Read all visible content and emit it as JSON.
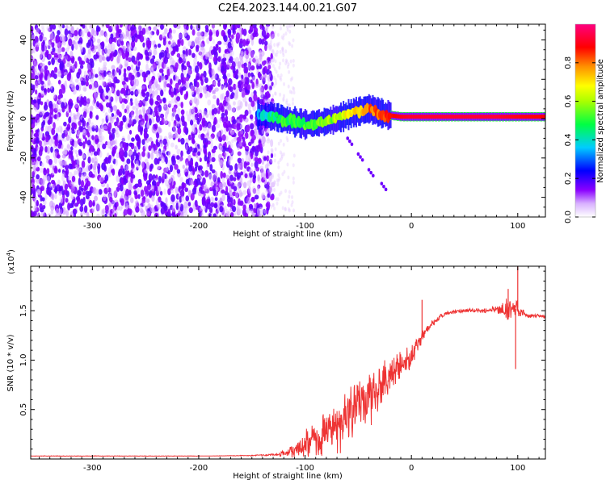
{
  "title": "C2E4.2023.144.00.21.G07",
  "chart_data": [
    {
      "type": "heatmap",
      "xlabel": "Height of straight line (km)",
      "ylabel": "Frequency (Hz)",
      "xlim": [
        -358,
        126
      ],
      "ylim": [
        -50,
        48
      ],
      "xticks": [
        -300,
        -200,
        -100,
        0,
        100
      ],
      "yticks": [
        -40,
        -20,
        0,
        20,
        40
      ],
      "xtick_labels": [
        "-300",
        "-200",
        "-100",
        "0",
        "100"
      ],
      "ytick_labels": [
        "-40",
        "-20",
        "0",
        "20",
        "40"
      ],
      "colorbar": {
        "label": "Normalized spectral amplitude",
        "range": [
          0,
          1
        ],
        "ticks": [
          0.0,
          0.2,
          0.4,
          0.6,
          0.8
        ],
        "tick_labels": [
          "0.0",
          "0.2",
          "0.4",
          "0.6",
          "0.8"
        ],
        "colormap": [
          "#ffffff",
          "#8a00ff",
          "#0000ff",
          "#00ffff",
          "#00ff00",
          "#ffff00",
          "#ff8000",
          "#ff0000",
          "#ff0080"
        ]
      },
      "noise_region": {
        "x_range": [
          -358,
          -130
        ],
        "freq_range": [
          -50,
          48
        ],
        "amplitude_range": [
          0.02,
          0.2
        ]
      },
      "ridge": [
        {
          "x": -145,
          "freq": 2,
          "amp": 0.3
        },
        {
          "x": -130,
          "freq": 1,
          "amp": 0.45
        },
        {
          "x": -115,
          "freq": -1,
          "amp": 0.5
        },
        {
          "x": -100,
          "freq": -3,
          "amp": 0.5
        },
        {
          "x": -85,
          "freq": -2,
          "amp": 0.55
        },
        {
          "x": -70,
          "freq": 0,
          "amp": 0.6
        },
        {
          "x": -55,
          "freq": 3,
          "amp": 0.7
        },
        {
          "x": -40,
          "freq": 5,
          "amp": 0.8
        },
        {
          "x": -25,
          "freq": 2,
          "amp": 0.85
        },
        {
          "x": -10,
          "freq": 1,
          "amp": 0.9
        },
        {
          "x": 0,
          "freq": 1,
          "amp": 0.92
        },
        {
          "x": 40,
          "freq": 1,
          "amp": 0.93
        },
        {
          "x": 80,
          "freq": 1,
          "amp": 0.93
        },
        {
          "x": 100,
          "freq": 1,
          "amp": 0.9
        },
        {
          "x": 126,
          "freq": 1,
          "amp": 0.88
        }
      ],
      "tail": [
        {
          "x": -60,
          "freq": -10
        },
        {
          "x": -50,
          "freq": -18
        },
        {
          "x": -40,
          "freq": -26
        },
        {
          "x": -28,
          "freq": -33
        }
      ]
    },
    {
      "type": "line",
      "xlabel": "Height of straight line (km)",
      "ylabel": "SNR (10 * v/v)",
      "multiplier_label": "(x10",
      "multiplier_exp": "4",
      "multiplier_close": ")",
      "xlim": [
        -358,
        126
      ],
      "ylim": [
        0,
        19500
      ],
      "xticks": [
        -300,
        -200,
        -100,
        0,
        100
      ],
      "yticks": [
        5000,
        10000,
        15000
      ],
      "xtick_labels": [
        "-300",
        "-200",
        "-100",
        "0",
        "100"
      ],
      "ytick_labels": [
        "0.5",
        "1.0",
        "1.5"
      ],
      "series": [
        {
          "color": "#ee3333",
          "x": [
            -358,
            -300,
            -250,
            -200,
            -150,
            -125,
            -110,
            -100,
            -90,
            -80,
            -70,
            -60,
            -50,
            -40,
            -30,
            -20,
            -10,
            0,
            10,
            20,
            30,
            40,
            50,
            60,
            70,
            80,
            90,
            95,
            100,
            105,
            110,
            126
          ],
          "y": [
            300,
            300,
            300,
            300,
            350,
            450,
            900,
            1500,
            2000,
            2700,
            3300,
            4200,
            5200,
            6300,
            7300,
            8400,
            9300,
            10500,
            12500,
            13800,
            14600,
            14900,
            15000,
            15000,
            15000,
            15100,
            15200,
            15000,
            15300,
            14800,
            14500,
            14400
          ],
          "noise": [
            0,
            0,
            0,
            0,
            50,
            150,
            900,
            1500,
            2000,
            2500,
            3000,
            3500,
            3800,
            3500,
            2800,
            2200,
            1800,
            1400,
            900,
            500,
            300,
            250,
            250,
            250,
            300,
            500,
            1300,
            1100,
            1200,
            600,
            300,
            150
          ]
        }
      ],
      "spikes": [
        {
          "x": 100,
          "y": 19500
        },
        {
          "x": 98,
          "y": 9100
        },
        {
          "x": 10,
          "y": 16100
        },
        {
          "x": 91,
          "y": 17200
        }
      ]
    }
  ]
}
